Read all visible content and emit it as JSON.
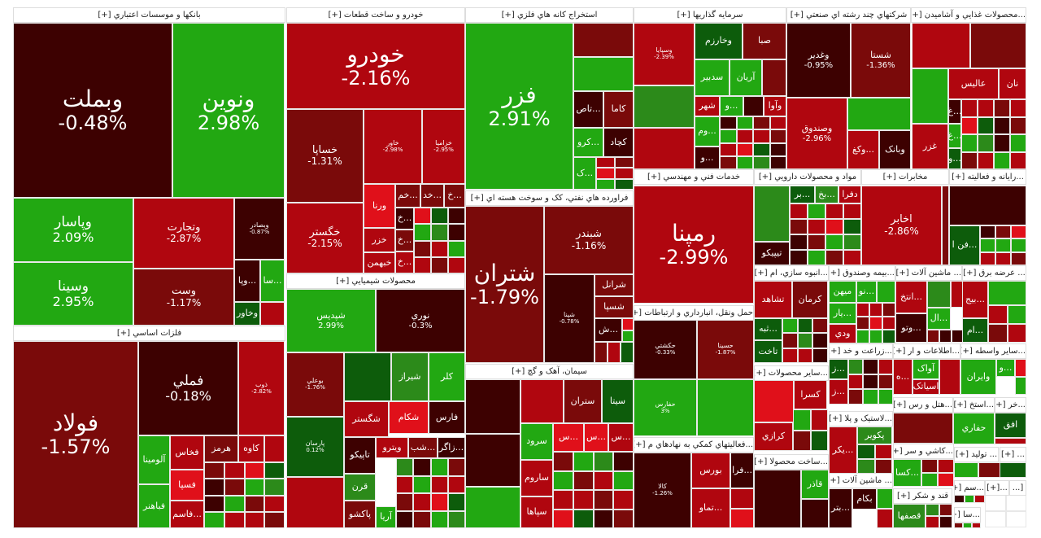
{
  "palette": {
    "M": "#3d0101",
    "D": "#7a0a0a",
    "R": "#b0060f",
    "B": "#e0101a",
    "G": "#22a812",
    "K": "#0d5c0b",
    "L": "#2c8a1a",
    "W": "#ffffff"
  },
  "sectors": [
    {
      "title": "بانکها و موسسات اعتباري [+]",
      "tiles": [
        {
          "name": "وبملت",
          "pct": "-0.48%",
          "c": "M"
        },
        {
          "name": "ونوين",
          "pct": "2.98%",
          "c": "G"
        },
        {
          "name": "وپاسار",
          "pct": "2.09%",
          "c": "G"
        },
        {
          "name": "وسينا",
          "pct": "2.95%",
          "c": "G"
        },
        {
          "name": "وتجارت",
          "pct": "-2.87%",
          "c": "R"
        },
        {
          "name": "وست",
          "pct": "-1.17%",
          "c": "D"
        },
        {
          "name": "وبصادر",
          "pct": "-0.87%",
          "c": "M"
        },
        {
          "name": "...وپا",
          "c": "M"
        },
        {
          "name": "...سا",
          "c": "G"
        },
        {
          "name": "وخاور",
          "c": "K"
        }
      ]
    },
    {
      "title": "خودرو و ساخت قطعات [+]",
      "tiles": [
        {
          "name": "خودرو",
          "pct": "-2.16%",
          "c": "R"
        },
        {
          "name": "خساپا",
          "pct": "-1.31%",
          "c": "D"
        },
        {
          "name": "خگستر",
          "pct": "-2.15%",
          "c": "R"
        },
        {
          "name": "خاور",
          "pct": "-2.98%",
          "c": "R"
        },
        {
          "name": "خزاميا",
          "pct": "-2.95%",
          "c": "R"
        },
        {
          "name": "ورنا",
          "c": "B"
        },
        {
          "name": "خزر",
          "c": "R"
        },
        {
          "name": "خبهمن",
          "c": "R"
        },
        {
          "name": "...خم",
          "c": "D"
        },
        {
          "name": "...خد",
          "c": "D"
        },
        {
          "name": "...خ",
          "c": "D"
        },
        {
          "name": "...خ",
          "c": "M"
        },
        {
          "name": "...خ",
          "c": "D"
        },
        {
          "name": "...خ",
          "c": "R"
        }
      ]
    },
    {
      "title": "استخراج کانه هاي فلزي [+]",
      "tiles": [
        {
          "name": "فزر",
          "pct": "2.91%",
          "c": "G"
        },
        {
          "name": "...تاص",
          "c": "M"
        },
        {
          "name": "کاما",
          "c": "D"
        },
        {
          "name": "...کرو",
          "c": "G"
        },
        {
          "name": "کچاد",
          "c": "M"
        },
        {
          "name": "...ک",
          "c": "G"
        }
      ]
    },
    {
      "title": "سرمايه گذاريها [+]",
      "tiles": [
        {
          "name": "وسپايا",
          "pct": "-2.39%",
          "c": "R"
        },
        {
          "name": "وخارزم",
          "c": "K"
        },
        {
          "name": "صبا",
          "c": "D"
        },
        {
          "name": "سدبير",
          "c": "G"
        },
        {
          "name": "آريان",
          "c": "G"
        },
        {
          "name": "شهر",
          "c": "R"
        },
        {
          "name": "...و",
          "c": "G"
        },
        {
          "name": "وآوا",
          "c": "R"
        },
        {
          "name": "...وم",
          "c": "G"
        },
        {
          "name": "...و",
          "c": "M"
        }
      ]
    },
    {
      "title": "شرکتهاي چند رشته اي صنعتي [+]",
      "tiles": [
        {
          "name": "وغدير",
          "pct": "-0.95%",
          "c": "M"
        },
        {
          "name": "شستا",
          "pct": "-1.36%",
          "c": "D"
        },
        {
          "name": "وصندوق",
          "pct": "-2.96%",
          "c": "R"
        },
        {
          "name": "...وکغ",
          "c": "R"
        },
        {
          "name": "وبانک",
          "c": "M"
        }
      ]
    },
    {
      "title": "...محصولات غذايي و آشاميدن [+]",
      "tiles": [
        {
          "name": "عاليس",
          "c": "R"
        },
        {
          "name": "نان",
          "c": "R"
        },
        {
          "name": "...غ",
          "c": "M"
        },
        {
          "name": "...غ",
          "c": "G"
        },
        {
          "name": "...و",
          "c": "K"
        },
        {
          "name": "غزر",
          "c": "R"
        }
      ]
    },
    {
      "title": "فراورده هاي نفتي، کک و سوخت هسته اي [+]",
      "tiles": [
        {
          "name": "شتران",
          "pct": "-1.79%",
          "c": "D"
        },
        {
          "name": "شبندر",
          "pct": "-1.16%",
          "c": "D"
        },
        {
          "name": "شپنا",
          "pct": "-0.78%",
          "c": "M"
        },
        {
          "name": "شرانل",
          "c": "D"
        },
        {
          "name": "شسپا",
          "c": "D"
        },
        {
          "name": "...ش",
          "c": "M"
        }
      ]
    },
    {
      "title": "خدمات فني و مهندسي [+]",
      "tiles": [
        {
          "name": "رمپنا",
          "pct": "-2.99%",
          "c": "R"
        }
      ]
    },
    {
      "title": "مواد و محصولات دارويي [+]",
      "tiles": [
        {
          "name": "تيپيکو",
          "c": "M"
        },
        {
          "name": "...بر",
          "c": "K"
        },
        {
          "name": "...بخ",
          "c": "L"
        },
        {
          "name": "دفرا",
          "c": "R"
        }
      ]
    },
    {
      "title": "مخابرات [+]",
      "tiles": [
        {
          "name": "اخابر",
          "pct": "-2.86%",
          "c": "R"
        }
      ]
    },
    {
      "title": "...رايانه و فعاليته [+]",
      "tiles": [
        {
          "name": "...فن ا",
          "c": "K"
        }
      ]
    },
    {
      "title": "محصولات شيميايي [+]",
      "tiles": [
        {
          "name": "شپديس",
          "pct": "2.99%",
          "c": "G"
        },
        {
          "name": "نوري",
          "pct": "-0.3%",
          "c": "M"
        },
        {
          "name": "بوعلي",
          "pct": "-1.76%",
          "c": "D"
        },
        {
          "name": "پارسان",
          "pct": "0.12%",
          "c": "K"
        },
        {
          "name": "شيراز",
          "c": "L"
        },
        {
          "name": "کلر",
          "c": "G"
        },
        {
          "name": "شگستر",
          "c": "R"
        },
        {
          "name": "شکام",
          "c": "B"
        },
        {
          "name": "فارس",
          "c": "M"
        },
        {
          "name": "تاپيکو",
          "c": "M"
        },
        {
          "name": "ويترو",
          "c": "R"
        },
        {
          "name": "...شب",
          "c": "D"
        },
        {
          "name": "...زاگر",
          "c": "M"
        },
        {
          "name": "قرن",
          "c": "L"
        },
        {
          "name": "پاکشو",
          "c": "D"
        },
        {
          "name": "آريا",
          "c": "G"
        }
      ]
    },
    {
      "title": "فلزات اساسي [+]",
      "tiles": [
        {
          "name": "فولاد",
          "pct": "-1.57%",
          "c": "D"
        },
        {
          "name": "فملي",
          "pct": "-0.18%",
          "c": "M"
        },
        {
          "name": "ذوب",
          "pct": "-2.82%",
          "c": "R"
        },
        {
          "name": "آلومينا",
          "c": "G"
        },
        {
          "name": "فباهنر",
          "c": "G"
        },
        {
          "name": "فخاس",
          "c": "R"
        },
        {
          "name": "هرمز",
          "c": "D"
        },
        {
          "name": "کاوه",
          "c": "R"
        },
        {
          "name": "فسپا",
          "c": "B"
        },
        {
          "name": "...فاسم",
          "c": "R"
        }
      ]
    },
    {
      "title": "سيمان، آهک و گچ [+]",
      "tiles": [
        {
          "name": "ستران",
          "c": "D"
        },
        {
          "name": "سيتا",
          "c": "K"
        },
        {
          "name": "سرود",
          "c": "G"
        },
        {
          "name": "...س",
          "c": "B"
        },
        {
          "name": "...س",
          "c": "B"
        },
        {
          "name": "...س",
          "c": "R"
        },
        {
          "name": "ساروم",
          "c": "R"
        },
        {
          "name": "سپاها",
          "c": "R"
        }
      ]
    },
    {
      "title": "حمل ونقل، انبارداري و ارتباطات [+]",
      "tiles": [
        {
          "name": "حکشتي",
          "pct": "-0.33%",
          "c": "M"
        },
        {
          "name": "حسينا",
          "pct": "-1.87%",
          "c": "D"
        },
        {
          "name": "حفارس",
          "pct": "3%",
          "c": "G"
        }
      ]
    },
    {
      "title": "...فعاليتهاي کمکي به نهادهاي م [+]",
      "tiles": [
        {
          "name": "کالا",
          "pct": "-1.26%",
          "c": "M"
        },
        {
          "name": "بورس",
          "c": "R"
        },
        {
          "name": "...فرا",
          "c": "M"
        },
        {
          "name": "...تماو",
          "c": "R"
        }
      ]
    },
    {
      "title": "...انبوه سازي، ام [+]",
      "tiles": [
        {
          "name": "تشاهد",
          "c": "R"
        },
        {
          "name": "کرمان",
          "c": "D"
        },
        {
          "name": "...ثبه",
          "c": "K"
        },
        {
          "name": "تاخت",
          "c": "K"
        }
      ]
    },
    {
      "title": "...بيمه وصندوق [+]",
      "tiles": [
        {
          "name": "ميهن",
          "c": "G"
        },
        {
          "name": "...نو",
          "c": "G"
        },
        {
          "name": "...يار",
          "c": "G"
        },
        {
          "name": "ودي",
          "c": "R"
        }
      ]
    },
    {
      "title": "... ماشين آلات [+]",
      "tiles": [
        {
          "name": "...انتخ",
          "c": "R"
        },
        {
          "name": "...وتو",
          "c": "M"
        },
        {
          "name": "...ال",
          "c": "G"
        }
      ]
    },
    {
      "title": "... عرضه برق [+]",
      "tiles": [
        {
          "name": "...بيج",
          "c": "R"
        },
        {
          "name": "...ام",
          "c": "K"
        }
      ]
    },
    {
      "title": "...ساير محصولات [+]",
      "tiles": [
        {
          "name": "کسرا",
          "c": "R"
        },
        {
          "name": "کرازي",
          "c": "R"
        }
      ]
    },
    {
      "title": "...زراعت و خد [+]",
      "tiles": [
        {
          "name": "...ز",
          "c": "K"
        },
        {
          "name": "...ز",
          "c": "R"
        }
      ]
    },
    {
      "title": "...اطلاعات و ار [+]",
      "tiles": [
        {
          "name": "...ه",
          "c": "R"
        },
        {
          "name": "آواک",
          "c": "G"
        },
        {
          "name": "اسياتک",
          "c": "R"
        }
      ]
    },
    {
      "title": "...ساير واسطه [+]",
      "tiles": [
        {
          "name": "وايران",
          "c": "G"
        },
        {
          "name": "...و",
          "c": "G"
        }
      ]
    },
    {
      "title": "...لاستيک و پلا [+]",
      "tiles": [
        {
          "name": "...يکر",
          "c": "R"
        },
        {
          "name": "پکوير",
          "c": "L"
        }
      ]
    },
    {
      "title": "...هتل و رس [+]",
      "tiles": []
    },
    {
      "title": "...استخ [+]",
      "tiles": [
        {
          "name": "حفاري",
          "c": "G"
        }
      ]
    },
    {
      "title": "...خر [+]",
      "tiles": [
        {
          "name": "افق",
          "c": "K"
        }
      ]
    },
    {
      "title": "...ساخت محصولا [+]",
      "tiles": [
        {
          "name": "قاذر",
          "c": "G"
        }
      ]
    },
    {
      "title": "... ماشين آلات [+]",
      "tiles": [
        {
          "name": "...بتر",
          "c": "M"
        },
        {
          "name": "بکام",
          "c": "M"
        }
      ]
    },
    {
      "title": "...کاشي و سر [+]",
      "tiles": [
        {
          "name": "...کسا",
          "c": "G"
        }
      ]
    },
    {
      "title": "... توليد [+]",
      "tiles": []
    },
    {
      "title": "... [+]",
      "tiles": []
    },
    {
      "title": "قند و شکر [+]",
      "tiles": [
        {
          "name": "قصفها",
          "c": "L"
        }
      ]
    },
    {
      "title": "...سم [+]",
      "tiles": []
    },
    {
      "title": "...[+]",
      "tiles": []
    },
    {
      "title": "[...",
      "tiles": []
    },
    {
      "title": "...سا [+]",
      "tiles": []
    }
  ]
}
